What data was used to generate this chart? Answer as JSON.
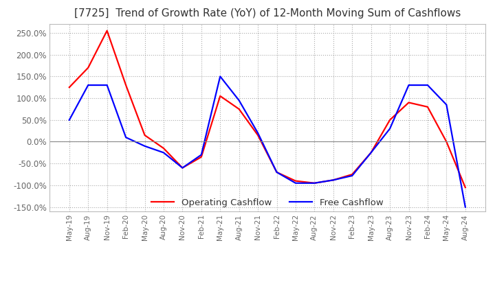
{
  "title": "[7725]  Trend of Growth Rate (YoY) of 12-Month Moving Sum of Cashflows",
  "title_fontsize": 11,
  "title_color": "#333333",
  "ylim": [
    -160,
    270
  ],
  "yticks": [
    -150,
    -100,
    -50,
    0,
    50,
    100,
    150,
    200,
    250
  ],
  "ytick_labels": [
    "-150.0%",
    "-100.0%",
    "-50.0%",
    "0.0%",
    "50.0%",
    "100.0%",
    "150.0%",
    "200.0%",
    "250.0%"
  ],
  "background_color": "#ffffff",
  "plot_background": "#ffffff",
  "grid_color": "#aaaaaa",
  "legend_entries": [
    "Operating Cashflow",
    "Free Cashflow"
  ],
  "line_colors": [
    "#ff0000",
    "#0000ff"
  ],
  "x_labels": [
    "May-19",
    "Aug-19",
    "Nov-19",
    "Feb-20",
    "May-20",
    "Aug-20",
    "Nov-20",
    "Feb-21",
    "May-21",
    "Aug-21",
    "Nov-21",
    "Feb-22",
    "May-22",
    "Aug-22",
    "Nov-22",
    "Feb-23",
    "May-23",
    "Aug-23",
    "Nov-23",
    "Feb-24",
    "May-24",
    "Aug-24"
  ],
  "operating_cashflow": [
    125,
    170,
    255,
    130,
    15,
    -15,
    -60,
    -35,
    105,
    75,
    15,
    -70,
    -90,
    -95,
    -88,
    -75,
    -25,
    50,
    90,
    80,
    0,
    -105
  ],
  "free_cashflow": [
    50,
    130,
    130,
    10,
    -10,
    -25,
    -60,
    -30,
    150,
    95,
    20,
    -70,
    -95,
    -95,
    -88,
    -78,
    -25,
    30,
    130,
    130,
    85,
    -150
  ]
}
